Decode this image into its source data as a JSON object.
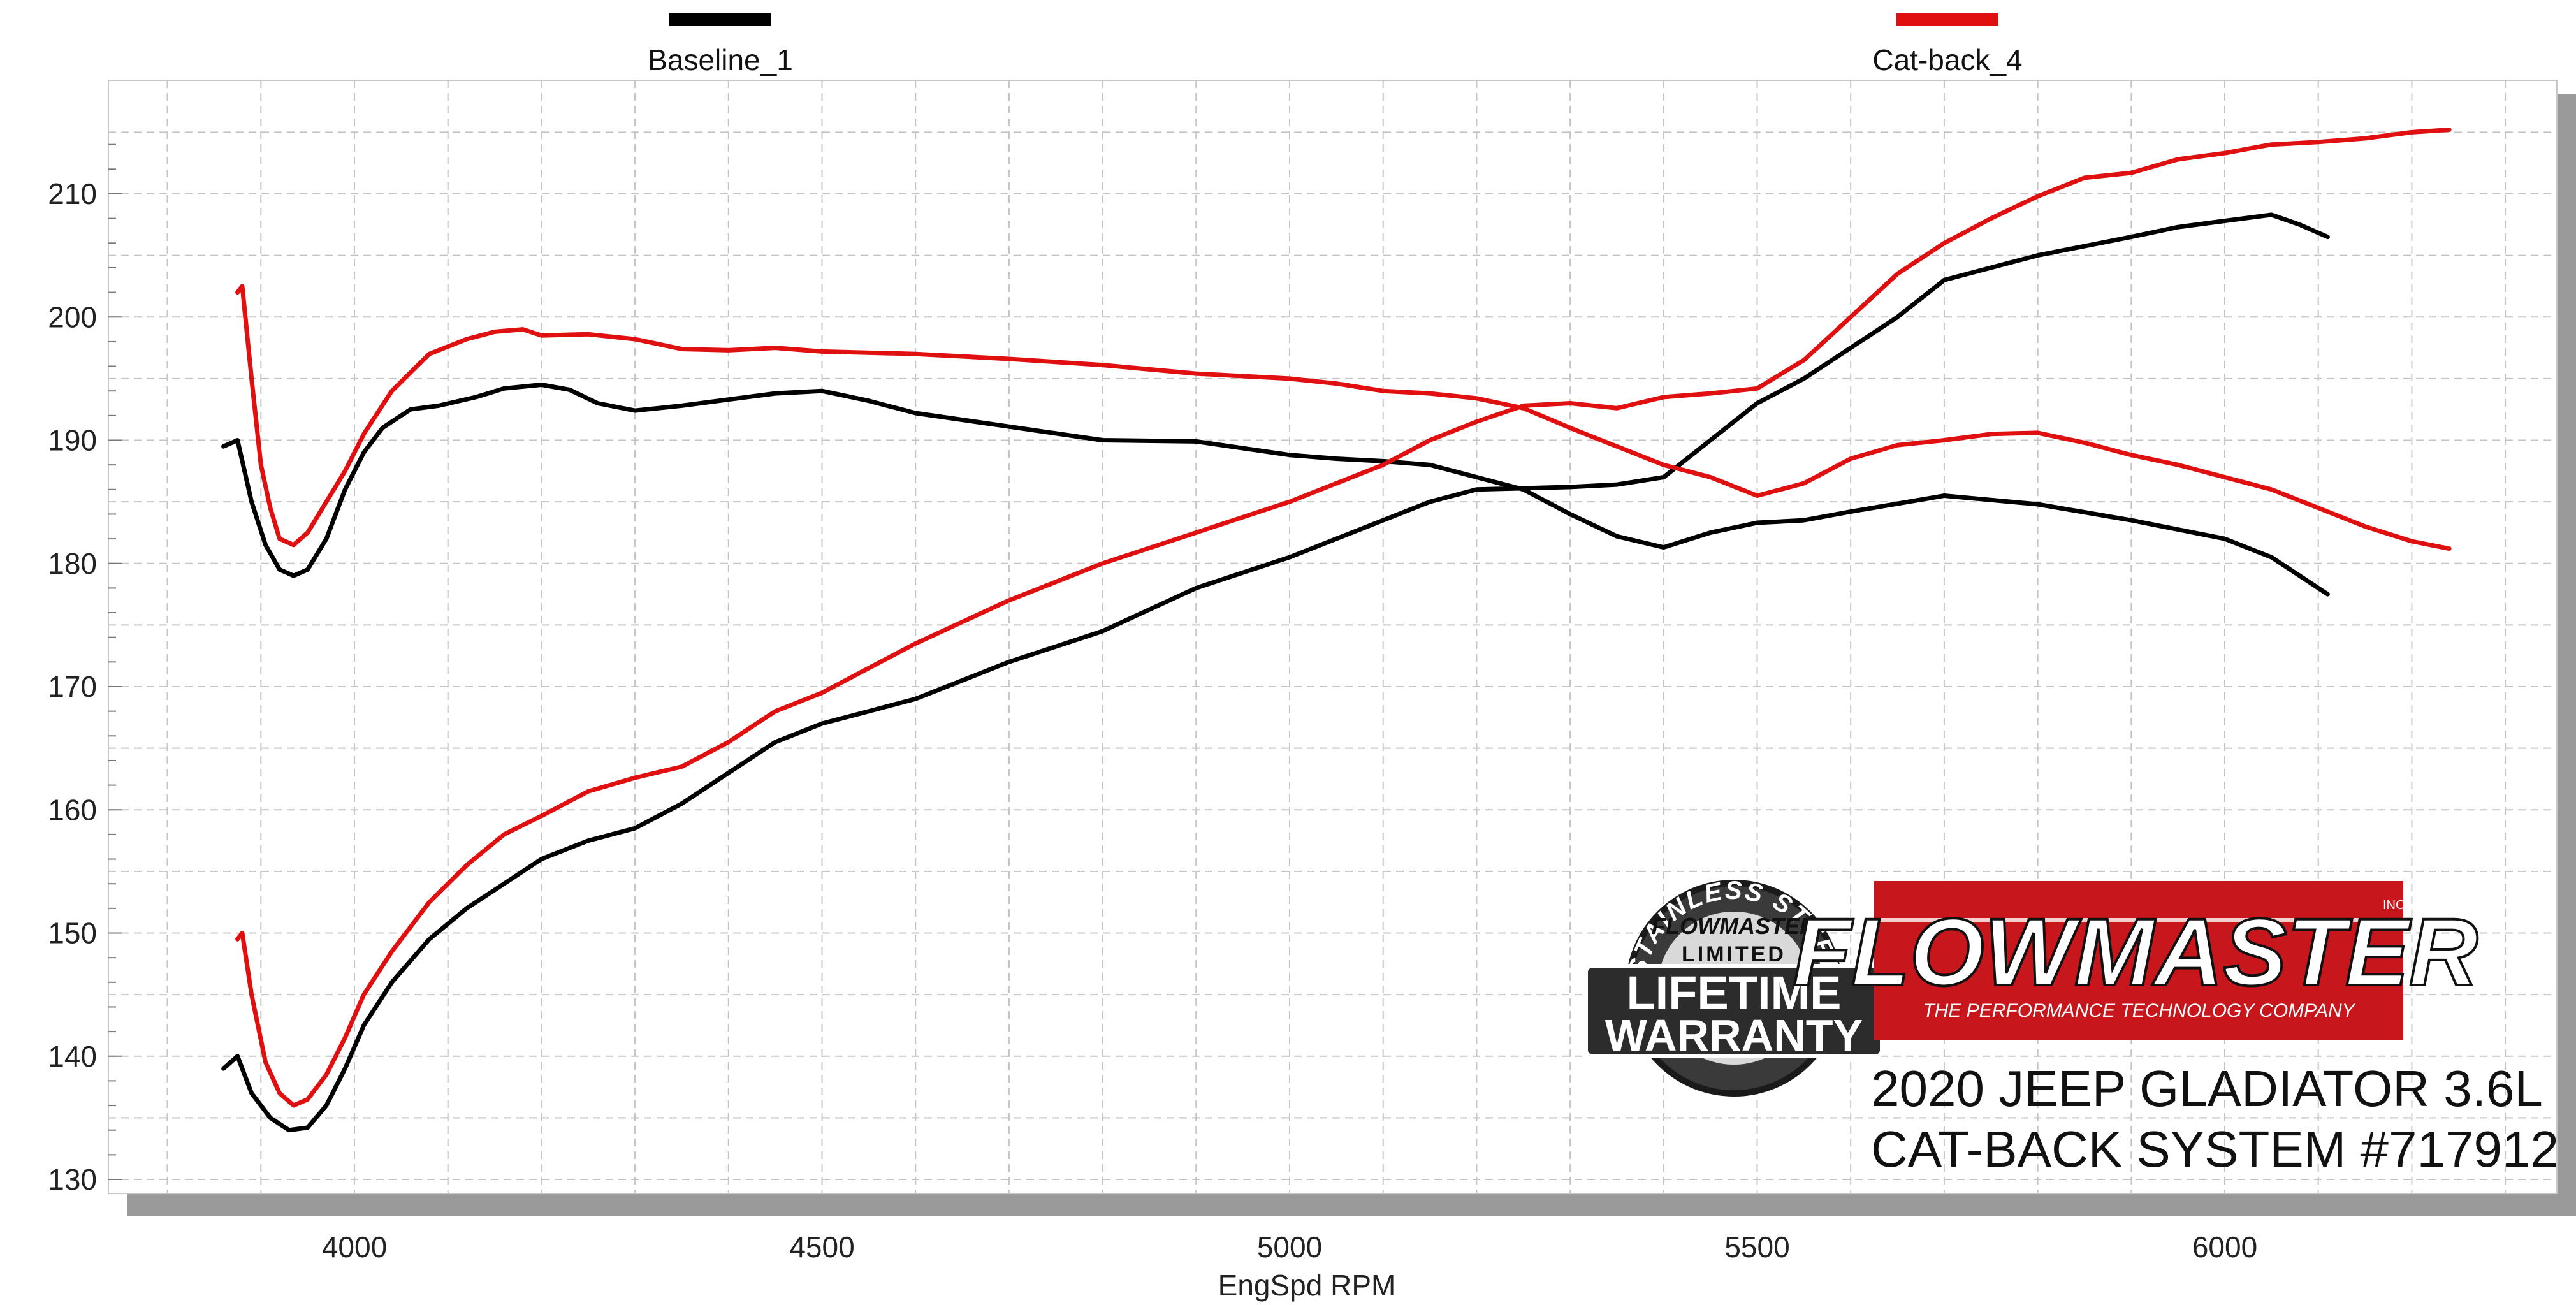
{
  "chart_data": {
    "type": "line",
    "xlabel": "EngSpd  RPM",
    "ylabel": "",
    "xlim": [
      3800,
      6300
    ],
    "ylim": [
      130,
      215
    ],
    "x_ticks": [
      4000,
      4500,
      5000,
      5500,
      6000
    ],
    "y_ticks": [
      130,
      140,
      150,
      160,
      170,
      180,
      190,
      200,
      210
    ],
    "grid": true,
    "legend_position": "top",
    "series": [
      {
        "name": "Baseline_1",
        "color": "#000000",
        "curves": [
          {
            "x": [
              3860,
              3875,
              3890,
              3905,
              3920,
              3935,
              3950,
              3970,
              3990,
              4010,
              4030,
              4060,
              4090,
              4130,
              4160,
              4200,
              4230,
              4260,
              4300,
              4350,
              4400,
              4450,
              4500,
              4550,
              4600,
              4700,
              4800,
              4900,
              5000,
              5050,
              5100,
              5150,
              5200,
              5250,
              5300,
              5350,
              5400,
              5450,
              5500,
              5550,
              5600,
              5700,
              5800,
              5900,
              6000,
              6050,
              6080,
              6110
            ],
            "y": [
              189.5,
              190,
              185,
              181.5,
              179.5,
              179,
              179.5,
              182,
              186,
              189,
              191,
              192.5,
              192.8,
              193.5,
              194.2,
              194.5,
              194.1,
              193,
              192.4,
              192.8,
              193.3,
              193.8,
              194,
              193.2,
              192.2,
              191.1,
              190,
              189.9,
              188.8,
              188.5,
              188.3,
              188,
              187,
              186,
              184,
              182.2,
              181.3,
              182.5,
              183.3,
              183.5,
              184.2,
              185.5,
              184.8,
              183.5,
              182,
              180.5,
              179,
              177.5
            ]
          },
          {
            "x": [
              3860,
              3875,
              3890,
              3910,
              3930,
              3950,
              3970,
              3990,
              4010,
              4040,
              4080,
              4120,
              4150,
              4200,
              4250,
              4300,
              4350,
              4400,
              4450,
              4500,
              4550,
              4600,
              4700,
              4800,
              4900,
              5000,
              5100,
              5150,
              5200,
              5250,
              5300,
              5350,
              5400,
              5450,
              5500,
              5550,
              5600,
              5650,
              5700,
              5800,
              5900,
              5950,
              6000,
              6050,
              6080,
              6110
            ],
            "y": [
              139,
              140,
              137,
              135,
              134,
              134.2,
              136,
              139,
              142.5,
              146,
              149.5,
              152,
              153.5,
              156,
              157.5,
              158.5,
              160.5,
              163,
              165.5,
              167,
              168,
              169,
              172,
              174.5,
              178,
              180.5,
              183.5,
              185,
              186,
              186.1,
              186.2,
              186.4,
              187,
              190,
              193,
              195,
              197.5,
              200,
              203,
              205,
              206.5,
              207.3,
              207.8,
              208.3,
              207.5,
              206.5
            ]
          }
        ]
      },
      {
        "name": "Cat-back_4",
        "color": "#e01010",
        "curves": [
          {
            "x": [
              3875,
              3880,
              3890,
              3900,
              3910,
              3920,
              3935,
              3950,
              3970,
              3990,
              4010,
              4040,
              4080,
              4120,
              4150,
              4180,
              4200,
              4250,
              4300,
              4350,
              4400,
              4450,
              4500,
              4600,
              4700,
              4800,
              4900,
              5000,
              5050,
              5100,
              5150,
              5200,
              5250,
              5300,
              5350,
              5400,
              5450,
              5500,
              5550,
              5600,
              5650,
              5700,
              5750,
              5800,
              5850,
              5900,
              5950,
              6000,
              6050,
              6100,
              6150,
              6200,
              6240
            ],
            "y": [
              202,
              202.5,
              195,
              188,
              184.5,
              182,
              181.5,
              182.5,
              185,
              187.5,
              190.5,
              194,
              197,
              198.2,
              198.8,
              199,
              198.5,
              198.6,
              198.2,
              197.4,
              197.3,
              197.5,
              197.2,
              197,
              196.6,
              196.1,
              195.4,
              195,
              194.6,
              194,
              193.8,
              193.4,
              192.6,
              191,
              189.5,
              188,
              187,
              185.5,
              186.5,
              188.5,
              189.6,
              190,
              190.5,
              190.6,
              189.8,
              188.8,
              188,
              187,
              186,
              184.5,
              183,
              181.8,
              181.2
            ]
          },
          {
            "x": [
              3875,
              3880,
              3890,
              3905,
              3920,
              3935,
              3950,
              3970,
              3990,
              4010,
              4040,
              4080,
              4120,
              4160,
              4200,
              4250,
              4300,
              4350,
              4400,
              4450,
              4500,
              4550,
              4600,
              4700,
              4800,
              4900,
              5000,
              5050,
              5100,
              5150,
              5200,
              5250,
              5300,
              5350,
              5400,
              5450,
              5500,
              5550,
              5600,
              5650,
              5700,
              5750,
              5800,
              5850,
              5900,
              5950,
              6000,
              6050,
              6100,
              6150,
              6200,
              6240
            ],
            "y": [
              149.5,
              150,
              145,
              139.5,
              137,
              136,
              136.5,
              138.5,
              141.5,
              145,
              148.5,
              152.5,
              155.5,
              158,
              159.5,
              161.5,
              162.6,
              163.5,
              165.5,
              168,
              169.5,
              171.5,
              173.5,
              177,
              180,
              182.5,
              185,
              186.5,
              188,
              190,
              191.5,
              192.8,
              193,
              192.6,
              193.5,
              193.8,
              194.2,
              196.5,
              200,
              203.5,
              206,
              208,
              209.8,
              211.3,
              211.7,
              212.8,
              213.3,
              214,
              214.2,
              214.5,
              215,
              215.2
            ]
          }
        ]
      }
    ]
  },
  "badge": {
    "arc_text": "STAINLESS STEEL",
    "brand": "FLOWMASTER",
    "limited": "LIMITED",
    "line1": "LIFETIME",
    "line2": "WARRANTY"
  },
  "logo": {
    "brand": "FLOWMASTER",
    "inc": "INC.",
    "tagline": "THE PERFORMANCE TECHNOLOGY COMPANY",
    "bg_color": "#c8161d"
  },
  "caption": {
    "line1": "2020 JEEP GLADIATOR 3.6L",
    "line2": "CAT-BACK SYSTEM #717912"
  }
}
